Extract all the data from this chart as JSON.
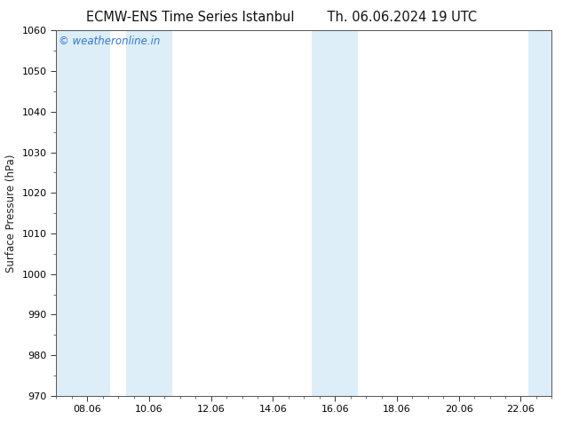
{
  "title_left": "ECMW-ENS Time Series Istanbul",
  "title_right": "Th. 06.06.2024 19 UTC",
  "ylabel": "Surface Pressure (hPa)",
  "ylim": [
    970,
    1060
  ],
  "yticks": [
    970,
    980,
    990,
    1000,
    1010,
    1020,
    1030,
    1040,
    1050,
    1060
  ],
  "xlim": [
    7.0,
    23.0
  ],
  "xticks": [
    8,
    10,
    12,
    14,
    16,
    18,
    20,
    22
  ],
  "xticklabels": [
    "08.06",
    "10.06",
    "12.06",
    "14.06",
    "16.06",
    "18.06",
    "20.06",
    "22.06"
  ],
  "background_color": "#ffffff",
  "plot_bg_color": "#ffffff",
  "shaded_bands": [
    {
      "xmin": 7.0,
      "xmax": 8.75,
      "color": "#ddeef8"
    },
    {
      "xmin": 9.25,
      "xmax": 10.75,
      "color": "#ddeef8"
    },
    {
      "xmin": 15.25,
      "xmax": 16.0,
      "color": "#ddeef8"
    },
    {
      "xmin": 16.0,
      "xmax": 16.75,
      "color": "#ddeef8"
    },
    {
      "xmin": 22.25,
      "xmax": 23.0,
      "color": "#ddeef8"
    }
  ],
  "watermark_text": "© weatheronline.in",
  "watermark_color": "#3377cc",
  "watermark_fontsize": 8.5,
  "title_fontsize": 10.5,
  "tick_fontsize": 8,
  "ylabel_fontsize": 8.5,
  "spine_color": "#555555",
  "tick_color": "#333333"
}
